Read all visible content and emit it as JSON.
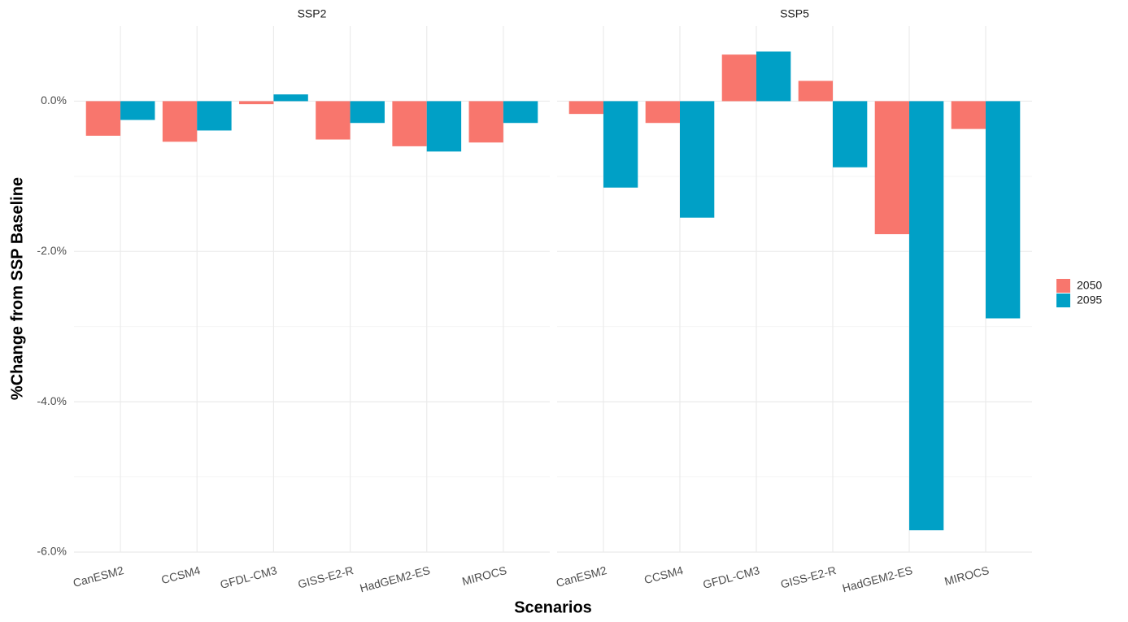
{
  "chart_data": {
    "type": "bar",
    "ylabel": "%Change from SSP Baseline",
    "xlabel": "Scenarios",
    "categories": [
      "CanESM2",
      "CCSM4",
      "GFDL-CM3",
      "GISS-E2-R",
      "HadGEM2-ES",
      "MIROCS"
    ],
    "series": [
      {
        "name": "2050",
        "color": "#f8766d"
      },
      {
        "name": "2095",
        "color": "#00a0c6"
      }
    ],
    "ylim": [
      -6.0,
      1.0
    ],
    "yticks": [
      {
        "value": 0,
        "label": "0.0%"
      },
      {
        "value": -2,
        "label": "-2.0%"
      },
      {
        "value": -4,
        "label": "-4.0%"
      },
      {
        "value": -6,
        "label": "-6.0%"
      }
    ],
    "minor_yticks": [
      -1,
      -3,
      -5
    ],
    "grid": true,
    "facets": [
      {
        "title": "SSP2",
        "series": [
          {
            "values": [
              -0.46,
              -0.54,
              -0.04,
              -0.51,
              -0.6,
              -0.55
            ]
          },
          {
            "values": [
              -0.25,
              -0.39,
              0.09,
              -0.29,
              -0.67,
              -0.29
            ]
          }
        ]
      },
      {
        "title": "SSP5",
        "series": [
          {
            "values": [
              -0.17,
              -0.29,
              0.62,
              0.27,
              -1.77,
              -0.37
            ]
          },
          {
            "values": [
              -1.15,
              -1.55,
              0.66,
              -0.88,
              -5.71,
              -2.89
            ]
          }
        ]
      }
    ]
  }
}
